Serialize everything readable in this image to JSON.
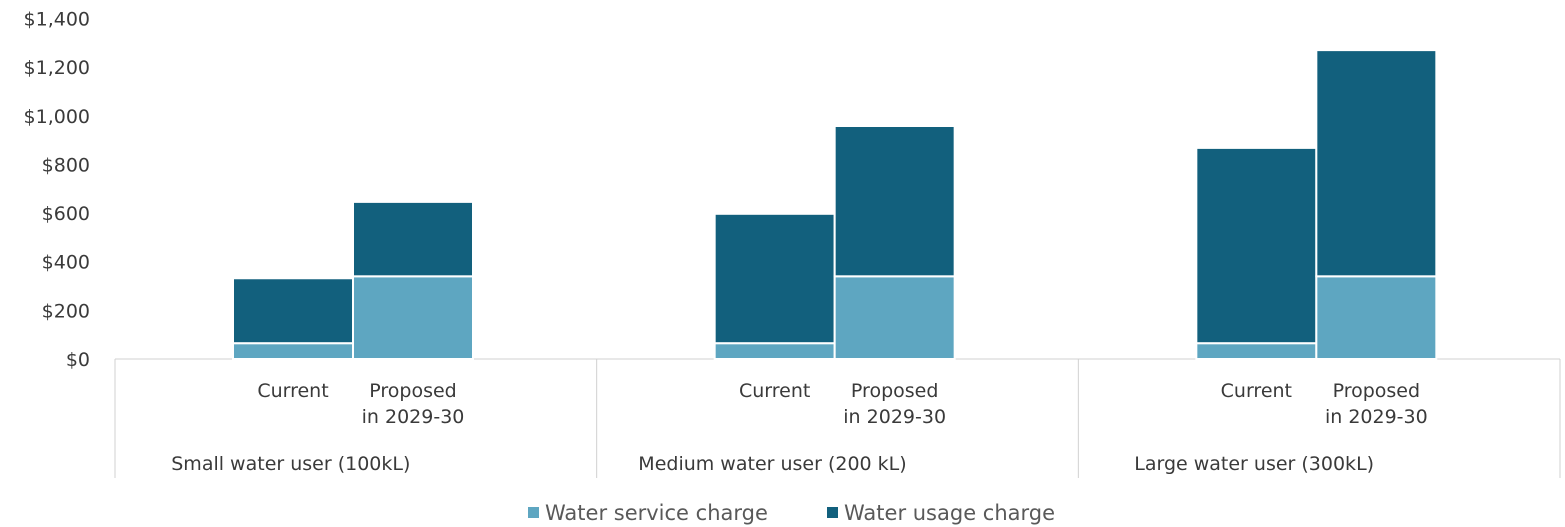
{
  "chart_data": {
    "type": "bar",
    "stacked": true,
    "groups": [
      {
        "label": "Small water user (100kL)",
        "bars": [
          "Current",
          "Proposed\nin 2029-30"
        ]
      },
      {
        "label": "Medium water user (200 kL)",
        "bars": [
          "Current",
          "Proposed\nin 2029-30"
        ]
      },
      {
        "label": "Large water user (300kL)",
        "bars": [
          "Current",
          "Proposed\nin 2029-30"
        ]
      }
    ],
    "series": [
      {
        "name": "Water service charge",
        "color": "#5ea6c1",
        "values": [
          65,
          340,
          65,
          340,
          65,
          340
        ]
      },
      {
        "name": "Water usage charge",
        "color": "#12607d",
        "values": [
          267,
          306,
          532,
          618,
          803,
          930
        ]
      }
    ],
    "y_ticks": [
      "$0",
      "$200",
      "$400",
      "$600",
      "$800",
      "$1,000",
      "$1,200",
      "$1,400"
    ],
    "ylim": [
      0,
      1400
    ],
    "legend_position": "bottom",
    "grid": false
  }
}
